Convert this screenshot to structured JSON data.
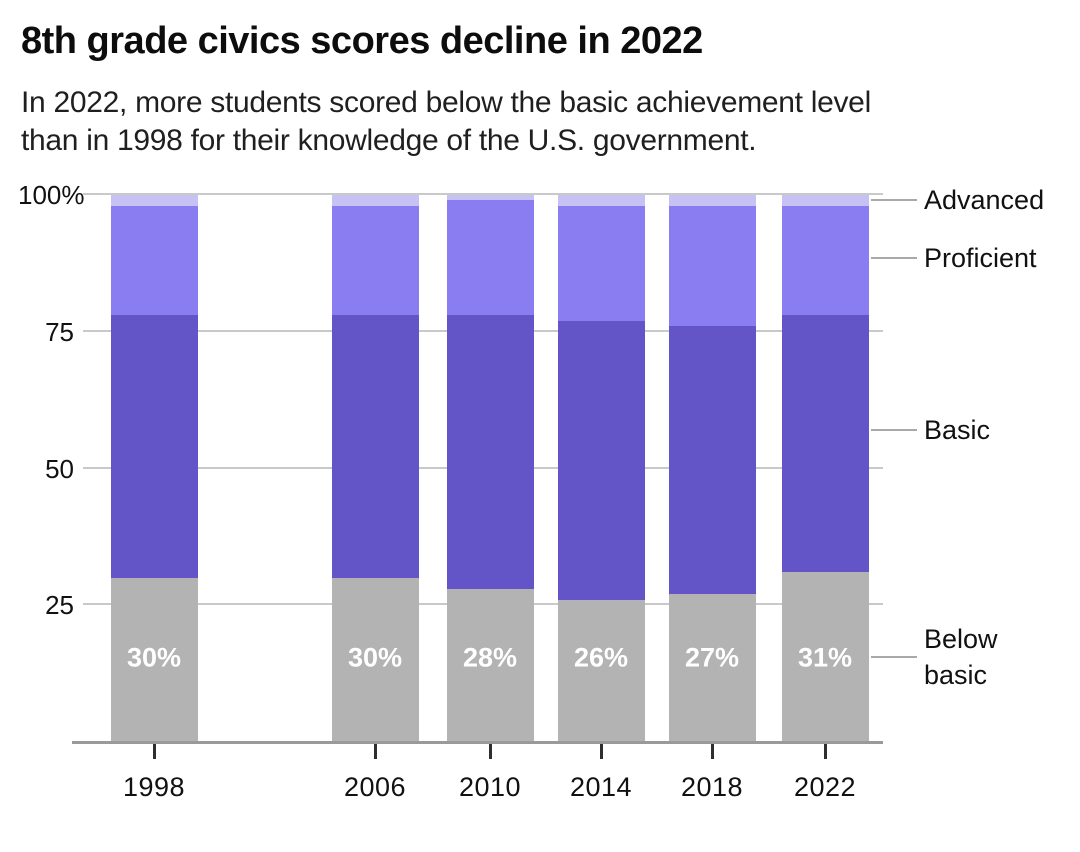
{
  "chart_data": {
    "type": "bar",
    "stacked": true,
    "orientation": "vertical",
    "title": "8th grade civics scores decline in 2022",
    "subtitle_lines": [
      "In 2022, more students scored below the basic achievement level",
      "than in 1998 for their knowledge of the U.S. government."
    ],
    "categories": [
      "1998",
      "2006",
      "2010",
      "2014",
      "2018",
      "2022"
    ],
    "x_years": [
      1998,
      2006,
      2010,
      2014,
      2018,
      2022
    ],
    "series": [
      {
        "name": "Below basic",
        "color": "#b3b3b3",
        "values": [
          30,
          30,
          28,
          26,
          27,
          31
        ]
      },
      {
        "name": "Basic",
        "color": "#6355c7",
        "values": [
          48,
          48,
          50,
          51,
          49,
          47
        ]
      },
      {
        "name": "Proficient",
        "color": "#8a7df2",
        "values": [
          20,
          20,
          21,
          21,
          22,
          20
        ]
      },
      {
        "name": "Advanced",
        "color": "#c6c3f4",
        "values": [
          2,
          2,
          1,
          2,
          2,
          2
        ]
      }
    ],
    "bar_labels": [
      "30%",
      "30%",
      "28%",
      "26%",
      "27%",
      "31%"
    ],
    "bar_label_color": "#ffffff",
    "y_ticks": [
      {
        "label": "100%",
        "value": 100
      },
      {
        "label": "75",
        "value": 75
      },
      {
        "label": "50",
        "value": 50
      },
      {
        "label": "25",
        "value": 25
      }
    ],
    "ylim": [
      0,
      100
    ],
    "grid": "horizontal",
    "legend_position": "right",
    "legend": [
      "Advanced",
      "Proficient",
      "Basic",
      "Below basic"
    ],
    "colors": {
      "gridline": "#c9c9c9",
      "axis_line": "#9a9a9a",
      "x_tick": "#2e2e2e",
      "leader_line": "#a9a9a9",
      "text": "#111111"
    }
  }
}
